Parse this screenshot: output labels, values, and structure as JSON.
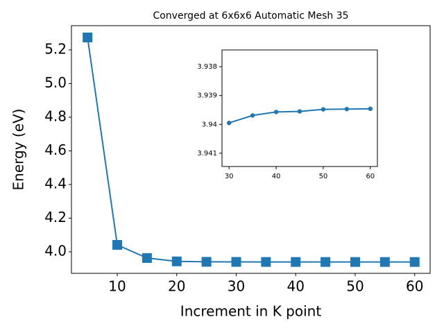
{
  "chart_data": [
    {
      "type": "line",
      "title": "Converged at 6x6x6 Automatic Mesh 35",
      "x_label": "Increment in K point",
      "y_label": "Energy (eV)",
      "x": [
        5,
        10,
        15,
        20,
        25,
        30,
        35,
        40,
        45,
        50,
        55,
        60
      ],
      "series": [
        {
          "color": "#1f77b4",
          "marker": "square",
          "values": [
            5.274,
            4.041,
            3.963,
            3.943,
            3.9405,
            3.93995,
            3.93969,
            3.93957,
            3.93955,
            3.93948,
            3.93947,
            3.93946
          ]
        }
      ],
      "xlim": [
        2.3,
        62.6
      ],
      "xticks": [
        10,
        20,
        30,
        40,
        50,
        60
      ],
      "ylim": [
        3.872,
        5.344
      ],
      "yticks": [
        {
          "value": 4,
          "label": "4.0"
        },
        4.2,
        4.4,
        4.6,
        4.8,
        {
          "value": 5,
          "label": "5.0"
        },
        5.2
      ]
    },
    {
      "type": "line",
      "x": [
        30,
        35,
        40,
        45,
        50,
        55,
        60
      ],
      "series": [
        {
          "color": "#1f77b4",
          "marker": "circle",
          "values": [
            3.93995,
            3.93969,
            3.93957,
            3.93955,
            3.93948,
            3.93947,
            3.93946
          ]
        }
      ],
      "xlim": [
        28.5,
        61.5
      ],
      "xticks": [
        30,
        40,
        50,
        60
      ],
      "ylim": [
        3.94146,
        3.93742
      ],
      "yticks": [
        3.938,
        3.939,
        3.94,
        3.941
      ]
    }
  ]
}
